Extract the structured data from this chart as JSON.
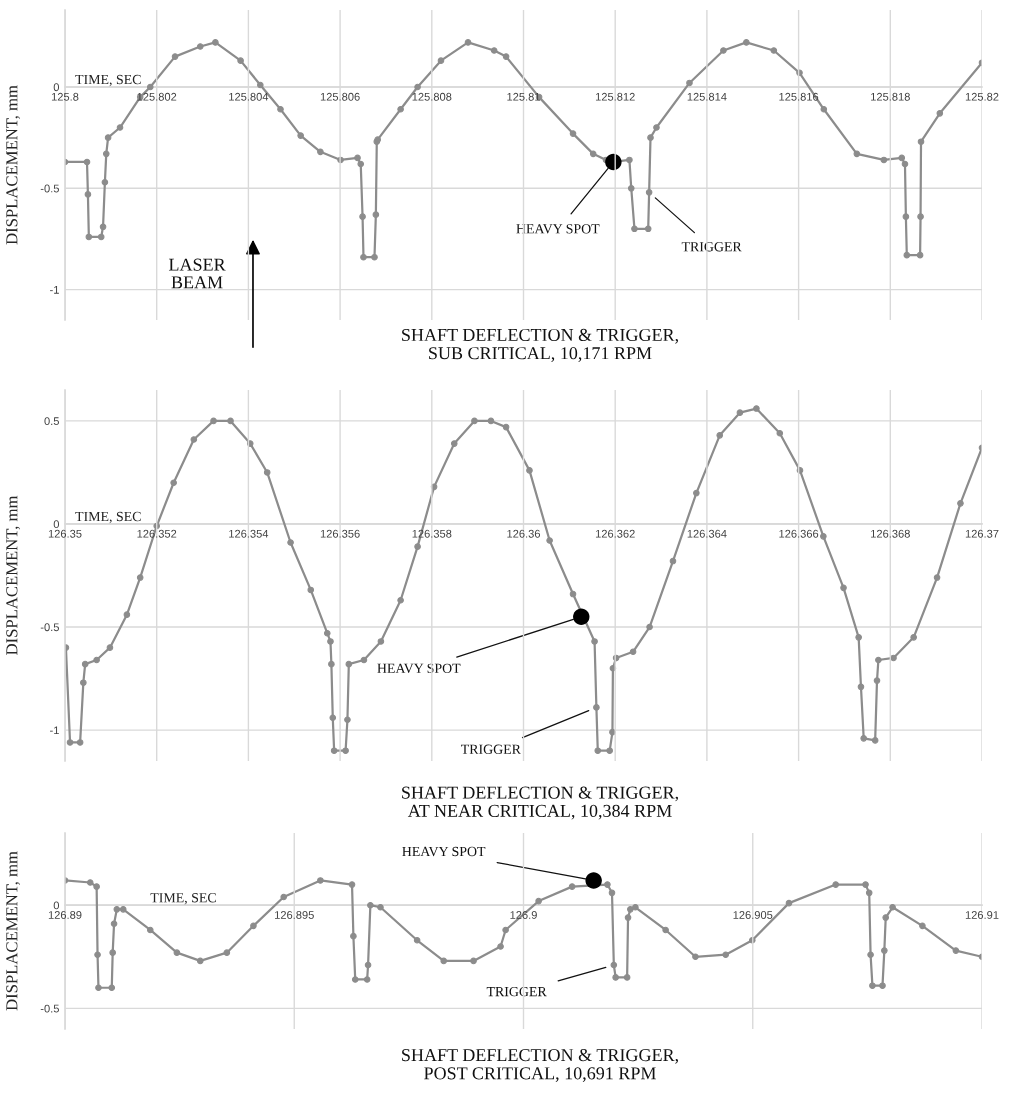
{
  "chart_data": [
    {
      "type": "line",
      "title": "SHAFT DEFLECTION & TRIGGER,\nSUB CRITICAL, 10,171 RPM",
      "xlabel": "TIME, SEC",
      "ylabel": "DISPLACEMENT, mm",
      "xlim": [
        125.8,
        125.82
      ],
      "ylim": [
        -1.15,
        0.38
      ],
      "xticks": [
        125.8,
        125.802,
        125.804,
        125.806,
        125.808,
        125.81,
        125.812,
        125.814,
        125.816,
        125.818,
        125.82
      ],
      "yticks": [
        -1,
        -0.5,
        0
      ],
      "grid": true,
      "marker": "circle",
      "series": [
        {
          "color": "#8c8c8c",
          "x": [
            125.8,
            125.80048,
            125.8005,
            125.80052,
            125.80079,
            125.80083,
            125.80087,
            125.8009,
            125.80094,
            125.8012,
            125.80164,
            125.80186,
            125.8024,
            125.80295,
            125.80328,
            125.80383,
            125.80426,
            125.8047,
            125.80514,
            125.80557,
            125.80601,
            125.80638,
            125.80645,
            125.80649,
            125.80651,
            125.80675,
            125.80678,
            125.8068,
            125.80682,
            125.80732,
            125.80769,
            125.8082,
            125.80879,
            125.80936,
            125.80962,
            125.81034,
            125.81108,
            125.81152,
            125.8118,
            125.81196,
            125.81231,
            125.81235,
            125.81242,
            125.81272,
            125.81274,
            125.81277,
            125.8129,
            125.81362,
            125.81436,
            125.81486,
            125.81546,
            125.81602,
            125.81655,
            125.81727,
            125.81786,
            125.81825,
            125.81832,
            125.81834,
            125.81836,
            125.81865,
            125.81866,
            125.81867,
            125.81908,
            125.82
          ],
          "values": [
            -0.37,
            -0.37,
            -0.53,
            -0.74,
            -0.74,
            -0.69,
            -0.47,
            -0.33,
            -0.25,
            -0.2,
            -0.05,
            0,
            0.15,
            0.2,
            0.22,
            0.13,
            0.01,
            -0.11,
            -0.24,
            -0.32,
            -0.36,
            -0.35,
            -0.38,
            -0.64,
            -0.84,
            -0.84,
            -0.63,
            -0.27,
            -0.26,
            -0.11,
            0,
            0.13,
            0.22,
            0.18,
            0.15,
            -0.05,
            -0.23,
            -0.33,
            -0.36,
            -0.37,
            -0.36,
            -0.5,
            -0.7,
            -0.7,
            -0.52,
            -0.25,
            -0.2,
            0.02,
            0.18,
            0.22,
            0.18,
            0.07,
            -0.11,
            -0.33,
            -0.36,
            -0.35,
            -0.38,
            -0.64,
            -0.83,
            -0.83,
            -0.64,
            -0.27,
            -0.13,
            0.12
          ]
        },
        {
          "type": "scatter",
          "color": "#000000",
          "x": [
            125.81196
          ],
          "values": [
            -0.37
          ]
        }
      ],
      "annotations": [
        {
          "text": "HEAVY SPOT",
          "x": 125.81196,
          "y": -0.37
        },
        {
          "text": "TRIGGER",
          "x": 125.81274,
          "y": -0.52
        },
        "LASER\nBEAM"
      ]
    },
    {
      "type": "line",
      "title": "SHAFT DEFLECTION & TRIGGER,\nAT NEAR CRITICAL, 10,384 RPM",
      "xlabel": "TIME, SEC",
      "ylabel": "DISPLACEMENT, mm",
      "xlim": [
        126.35,
        126.37
      ],
      "ylim": [
        -1.15,
        0.65
      ],
      "xticks": [
        126.35,
        126.352,
        126.354,
        126.356,
        126.358,
        126.36,
        126.362,
        126.364,
        126.366,
        126.368,
        126.37
      ],
      "yticks": [
        -1,
        -0.5,
        0,
        0.5
      ],
      "grid": true,
      "marker": "circle",
      "series": [
        {
          "color": "#8c8c8c",
          "x": [
            126.35002,
            126.35011,
            126.35033,
            126.3504,
            126.35044,
            126.35069,
            126.35098,
            126.35135,
            126.35164,
            126.352,
            126.35237,
            126.35281,
            126.35324,
            126.35361,
            126.35404,
            126.35441,
            126.35492,
            126.35536,
            126.35572,
            126.35579,
            126.35581,
            126.35584,
            126.35587,
            126.35612,
            126.35616,
            126.35619,
            126.35652,
            126.35689,
            126.35732,
            126.35769,
            126.35805,
            126.35849,
            126.35893,
            126.35929,
            126.35962,
            126.36013,
            126.36057,
            126.36108,
            126.36155,
            126.36159,
            126.36162,
            126.36188,
            126.36194,
            126.36195,
            126.36202,
            126.36239,
            126.36275,
            126.36326,
            126.36377,
            126.36428,
            126.36472,
            126.36508,
            126.36559,
            126.36603,
            126.36654,
            126.36698,
            126.36731,
            126.36736,
            126.36742,
            126.36767,
            126.36771,
            126.36774,
            126.36807,
            126.36851,
            126.36902,
            126.36953,
            126.37
          ],
          "values": [
            -0.6,
            -1.06,
            -1.06,
            -0.77,
            -0.68,
            -0.66,
            -0.6,
            -0.44,
            -0.26,
            -0.01,
            0.2,
            0.41,
            0.5,
            0.5,
            0.39,
            0.25,
            -0.09,
            -0.32,
            -0.53,
            -0.57,
            -0.68,
            -0.94,
            -1.1,
            -1.1,
            -0.95,
            -0.68,
            -0.66,
            -0.57,
            -0.37,
            -0.11,
            0.18,
            0.39,
            0.5,
            0.5,
            0.47,
            0.26,
            -0.08,
            -0.34,
            -0.57,
            -0.89,
            -1.1,
            -1.1,
            -1.01,
            -0.7,
            -0.65,
            -0.62,
            -0.5,
            -0.18,
            0.15,
            0.43,
            0.54,
            0.56,
            0.44,
            0.26,
            -0.06,
            -0.31,
            -0.55,
            -0.79,
            -1.04,
            -1.05,
            -0.76,
            -0.66,
            -0.65,
            -0.55,
            -0.26,
            0.1,
            0.37
          ]
        },
        {
          "type": "scatter",
          "color": "#000000",
          "x": [
            126.36126
          ],
          "values": [
            -0.45
          ]
        }
      ],
      "annotations": [
        {
          "text": "HEAVY SPOT",
          "x": 126.36126,
          "y": -0.45
        },
        {
          "text": "TRIGGER",
          "x": 126.36159,
          "y": -0.89
        }
      ]
    },
    {
      "type": "line",
      "title": "SHAFT DEFLECTION & TRIGGER,\nPOST CRITICAL, 10,691 RPM",
      "xlabel": "TIME, SEC",
      "ylabel": "DISPLACEMENT, mm",
      "xlim": [
        126.89,
        126.91
      ],
      "ylim": [
        -0.6,
        0.35
      ],
      "xticks": [
        126.89,
        126.895,
        126.9,
        126.905,
        126.91
      ],
      "yticks": [
        -0.5,
        0
      ],
      "grid": true,
      "marker": "circle",
      "series": [
        {
          "color": "#8c8c8c",
          "x": [
            126.89,
            126.89055,
            126.89069,
            126.89071,
            126.89073,
            126.89102,
            126.89104,
            126.89107,
            126.89113,
            126.89127,
            126.89186,
            126.89244,
            126.89295,
            126.89353,
            126.89411,
            126.89477,
            126.89557,
            126.89626,
            126.89629,
            126.89633,
            126.89659,
            126.89661,
            126.89666,
            126.89688,
            126.89768,
            126.89826,
            126.89891,
            126.8995,
            126.89961,
            126.90033,
            126.90106,
            126.90183,
            126.90193,
            126.90197,
            126.90201,
            126.90226,
            126.90228,
            126.90233,
            126.90244,
            126.9031,
            126.90375,
            126.90441,
            126.90499,
            126.90579,
            126.90681,
            126.90746,
            126.90754,
            126.90757,
            126.90761,
            126.90783,
            126.90787,
            126.9079,
            126.90805,
            126.9087,
            126.90943,
            126.91
          ],
          "values": [
            0.12,
            0.11,
            0.09,
            -0.24,
            -0.4,
            -0.4,
            -0.23,
            -0.09,
            -0.02,
            -0.02,
            -0.12,
            -0.23,
            -0.27,
            -0.23,
            -0.1,
            0.04,
            0.12,
            0.1,
            -0.15,
            -0.36,
            -0.36,
            -0.29,
            0,
            -0.01,
            -0.17,
            -0.27,
            -0.27,
            -0.2,
            -0.12,
            0.02,
            0.09,
            0.1,
            0.06,
            -0.29,
            -0.35,
            -0.35,
            -0.06,
            -0.02,
            -0.01,
            -0.12,
            -0.25,
            -0.24,
            -0.17,
            0.01,
            0.1,
            0.1,
            0.06,
            -0.24,
            -0.39,
            -0.39,
            -0.22,
            -0.06,
            -0.01,
            -0.1,
            -0.22,
            -0.25
          ]
        },
        {
          "type": "scatter",
          "color": "#000000",
          "x": [
            126.90153
          ],
          "values": [
            0.12
          ]
        }
      ],
      "annotations": [
        {
          "text": "HEAVY SPOT",
          "x": 126.90153,
          "y": 0.12
        },
        {
          "text": "TRIGGER",
          "x": 126.90197,
          "y": -0.29
        }
      ]
    }
  ]
}
